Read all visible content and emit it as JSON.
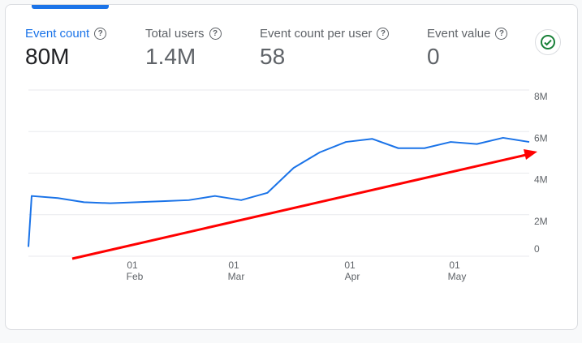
{
  "metrics": [
    {
      "label": "Event count",
      "value": "80M"
    },
    {
      "label": "Total users",
      "value": "1.4M"
    },
    {
      "label": "Event count per user",
      "value": "58"
    },
    {
      "label": "Event value",
      "value": "0"
    }
  ],
  "colors": {
    "accent": "#1a73e8",
    "series": "#1a73e8",
    "annotation_arrow": "#ff0000",
    "check": "#188038"
  },
  "icons": {
    "help": "help-circle-icon",
    "status": "check-circle-icon"
  },
  "chart_data": {
    "type": "line",
    "y_unit": "M",
    "ylim": [
      0,
      8
    ],
    "y_ticks": [
      "8M",
      "6M",
      "4M",
      "2M",
      "0"
    ],
    "y_tick_values": [
      8,
      6,
      4,
      2,
      0
    ],
    "x_ticks": [
      {
        "day": "01",
        "month": "Feb"
      },
      {
        "day": "01",
        "month": "Mar"
      },
      {
        "day": "01",
        "month": "Apr"
      },
      {
        "day": "01",
        "month": "May"
      }
    ],
    "grid": true,
    "series": [
      {
        "x": [
          "Jan 3",
          "Jan 4",
          "Jan 11",
          "Jan 18",
          "Jan 25",
          "Feb 1",
          "Feb 8",
          "Feb 15",
          "Feb 22",
          "Mar 1",
          "Mar 8",
          "Mar 15",
          "Mar 22",
          "Mar 29",
          "Apr 5",
          "Apr 12",
          "Apr 19",
          "Apr 26",
          "May 3",
          "May 10",
          "May 17"
        ],
        "values": [
          0.45,
          2.9,
          2.8,
          2.6,
          2.55,
          2.6,
          2.65,
          2.7,
          2.9,
          2.7,
          3.05,
          4.25,
          5.0,
          5.5,
          5.65,
          5.2,
          5.2,
          5.5,
          5.4,
          5.7,
          5.5
        ]
      }
    ],
    "annotations": [
      {
        "type": "arrow",
        "color": "#ff0000",
        "direction": "upward trend"
      }
    ]
  }
}
